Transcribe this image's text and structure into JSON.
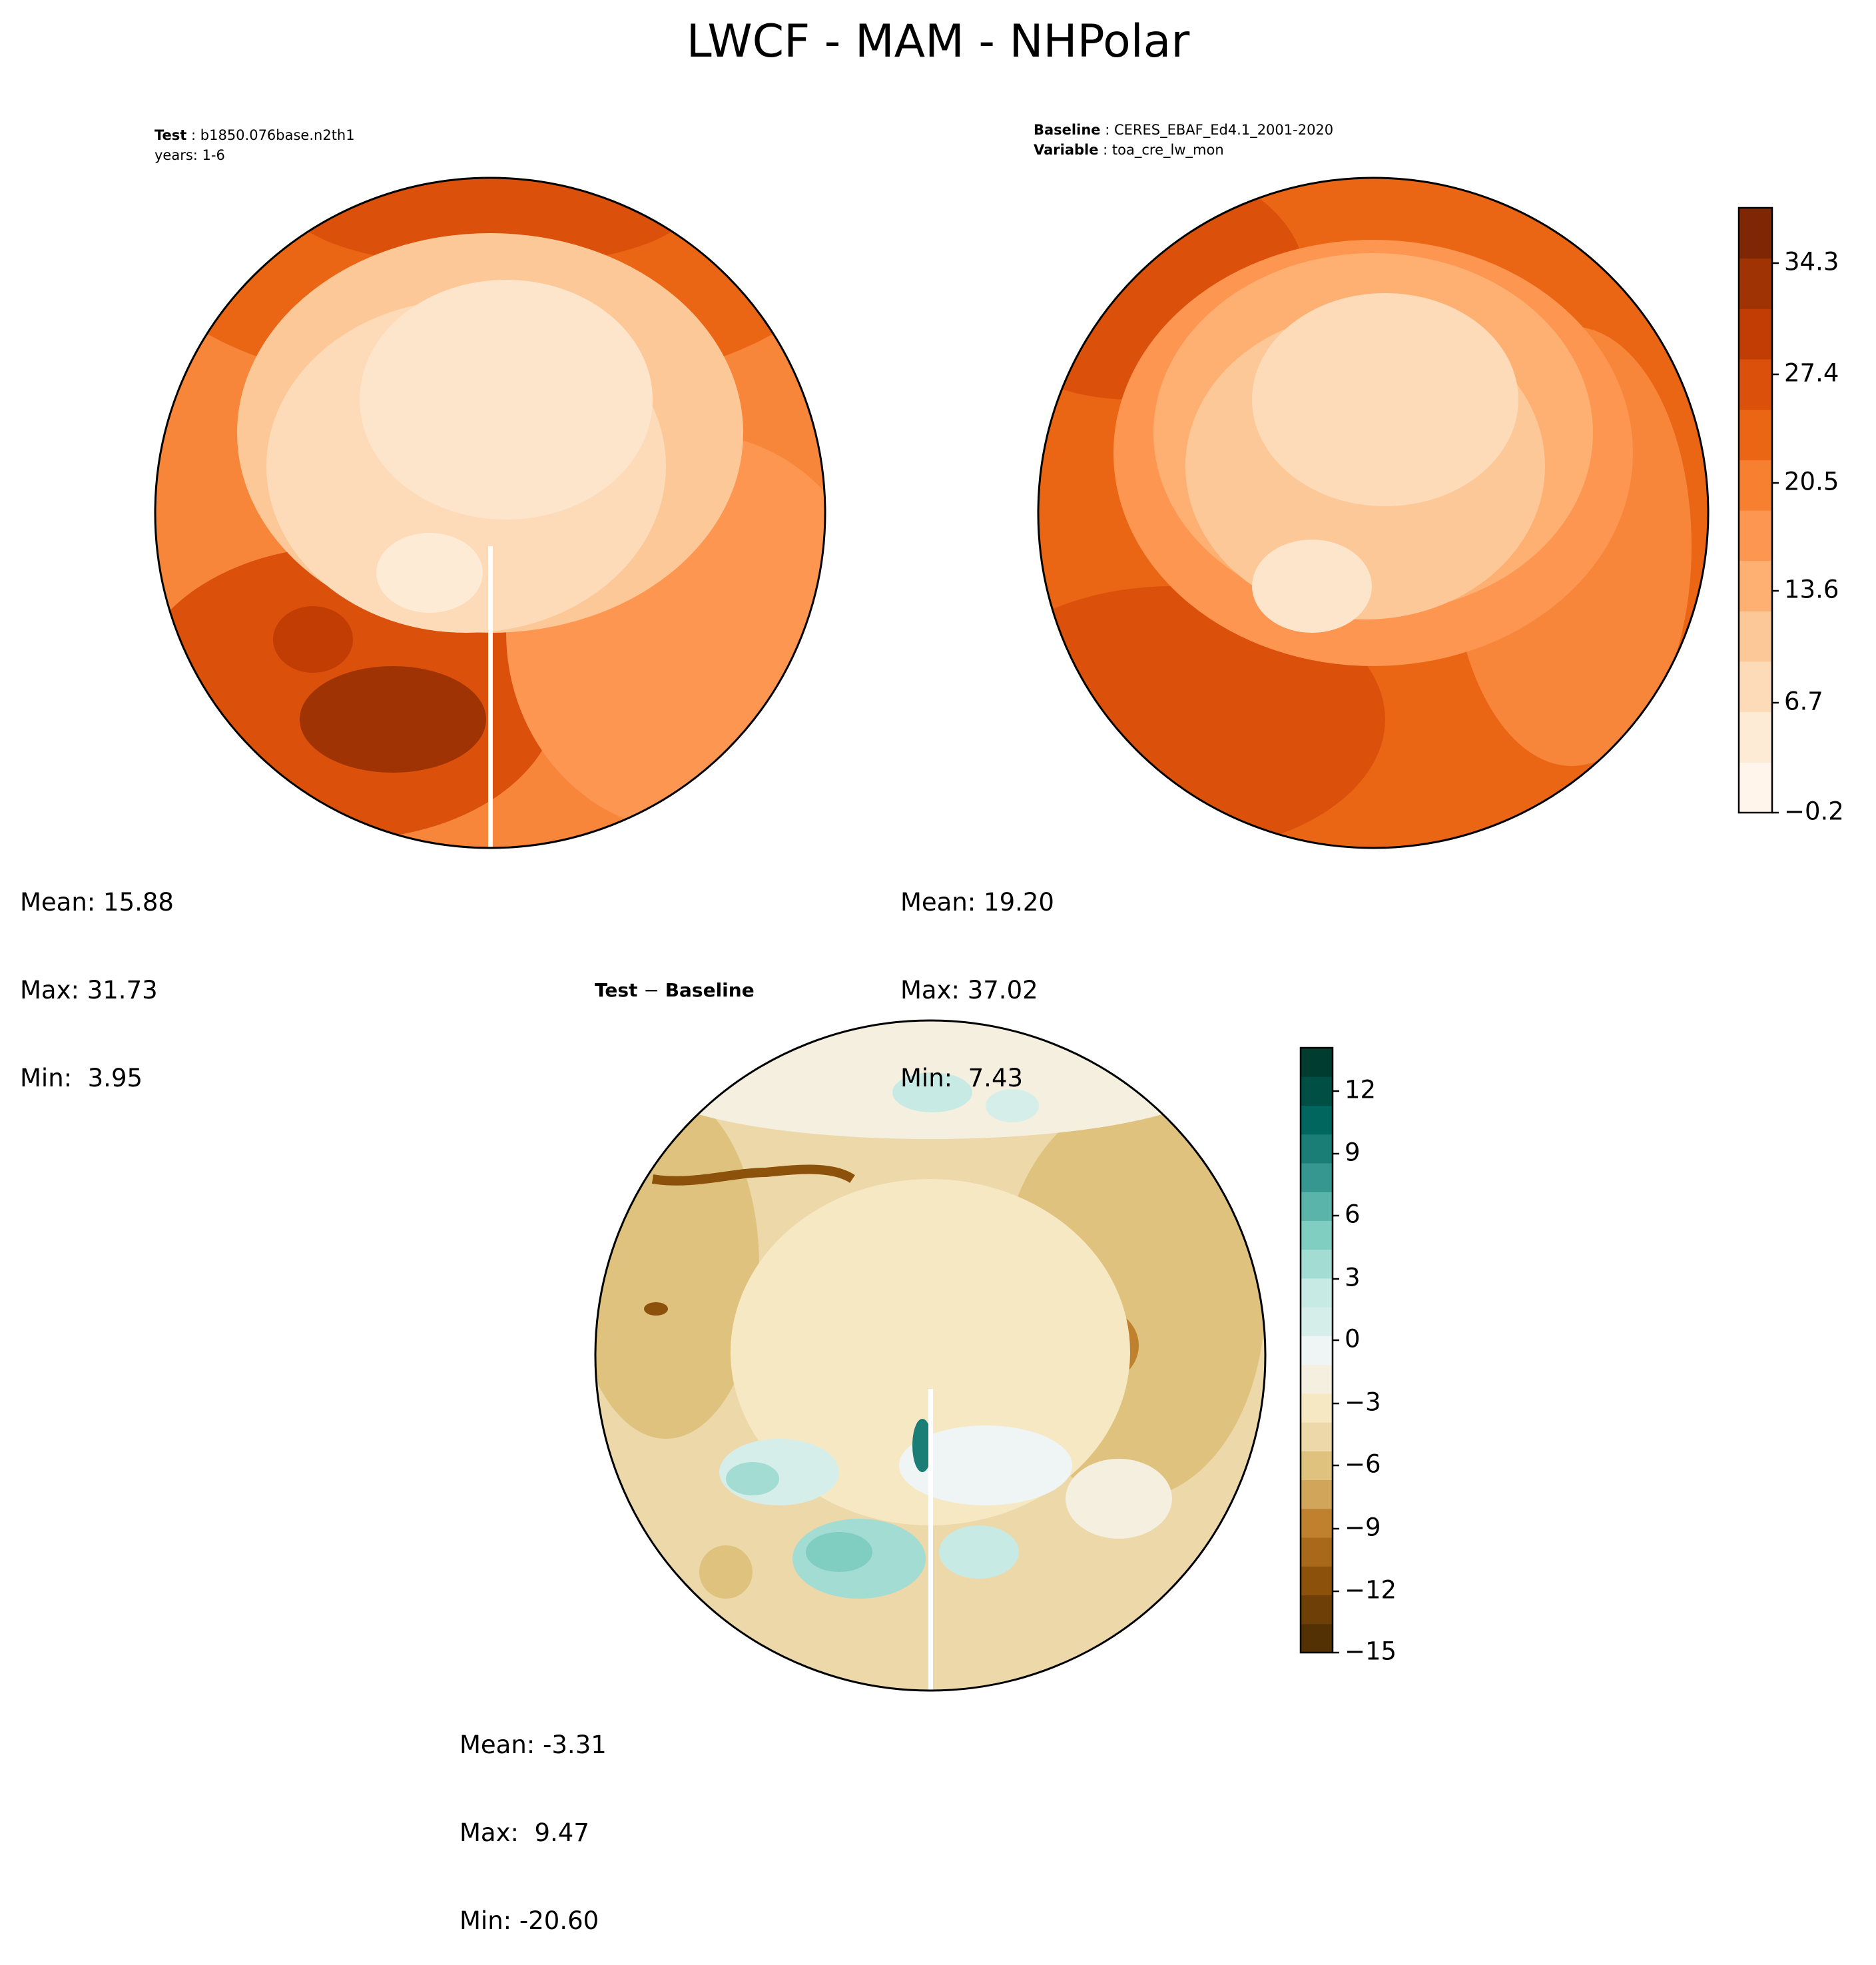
{
  "title": "LWCF - MAM - NHPolar",
  "panels": [
    {
      "id": "test",
      "header_lines": [
        {
          "key": "Test",
          "value": "b1850.076base.n2th1"
        },
        {
          "key": "",
          "value": "years: 1-6"
        }
      ],
      "stats": {
        "mean": "Mean: 15.88",
        "max": "Max: 31.73",
        "min": "Min:  3.95"
      }
    },
    {
      "id": "baseline",
      "header_lines": [
        {
          "key": "Baseline",
          "value": "CERES_EBAF_Ed4.1_2001-2020"
        },
        {
          "key": "Variable",
          "value": "toa_cre_lw_mon"
        }
      ],
      "stats": {
        "mean": "Mean: 19.20",
        "max": "Max: 37.02",
        "min": "Min:  7.43"
      }
    },
    {
      "id": "diff",
      "title_key": "Test",
      "title_sep": " − ",
      "title_value": "Baseline",
      "stats": {
        "mean": "Mean: -3.31",
        "max": "Max:  9.47",
        "min": "Min: -20.60"
      }
    }
  ],
  "colorbar_main": {
    "colormap": "Oranges",
    "ticks": [
      "34.3",
      "27.4",
      "20.5",
      "13.6",
      "6.7",
      "−0.2"
    ],
    "levels": [
      "#fff5eb",
      "#feebd6",
      "#fddbb8",
      "#fdc897",
      "#fdb072",
      "#fd9650",
      "#f77f30",
      "#eb6614",
      "#db500b",
      "#c13d03",
      "#a03303",
      "#7f2704"
    ]
  },
  "colorbar_diff": {
    "colormap": "BrBG",
    "ticks": [
      "12",
      "9",
      "6",
      "3",
      "0",
      "−3",
      "−6",
      "−9",
      "−12",
      "−15"
    ],
    "levels": [
      "#543005",
      "#6f3f08",
      "#8c510a",
      "#a8691b",
      "#bf812d",
      "#d1a55a",
      "#dfc27d",
      "#ecd8a8",
      "#f6e8c3",
      "#f5efe0",
      "#eef5f4",
      "#d6eeea",
      "#c7eae5",
      "#a3dcd3",
      "#80cdc1",
      "#5ab4a9",
      "#35978f",
      "#1b7e76",
      "#01665e",
      "#004f45",
      "#003c30"
    ]
  }
}
